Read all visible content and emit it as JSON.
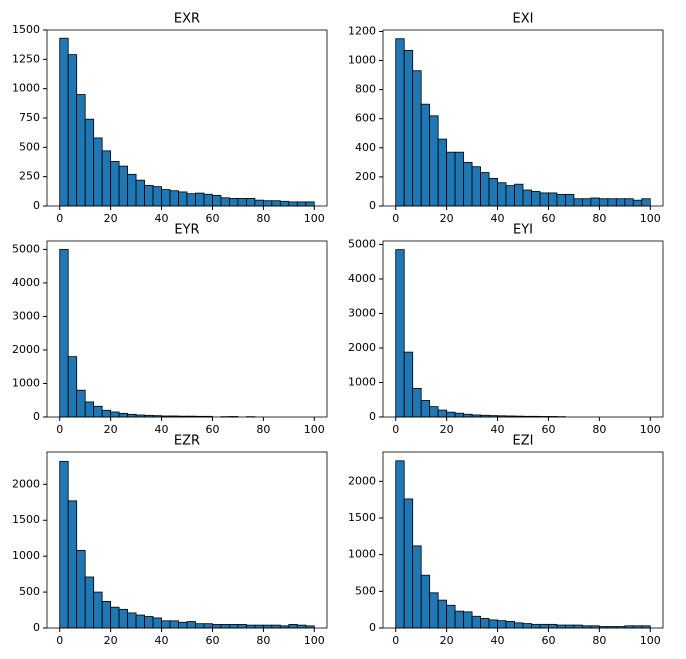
{
  "chart_data": [
    {
      "type": "histogram",
      "title": "EXR",
      "color": "#1f77b4",
      "edgecolor": "#000000",
      "bins": [
        0,
        3.33,
        6.67,
        10,
        13.33,
        16.67,
        20,
        23.33,
        26.67,
        30,
        33.33,
        36.67,
        40,
        43.33,
        46.67,
        50,
        53.33,
        56.67,
        60,
        63.33,
        66.67,
        70,
        73.33,
        76.67,
        80,
        83.33,
        86.67,
        90,
        93.33,
        96.67,
        100
      ],
      "values": [
        1430,
        1290,
        950,
        740,
        580,
        470,
        380,
        340,
        270,
        220,
        175,
        165,
        140,
        130,
        120,
        105,
        110,
        100,
        90,
        70,
        65,
        65,
        65,
        50,
        45,
        45,
        40,
        35,
        35,
        35
      ],
      "xlim": [
        -5,
        105
      ],
      "xticks": [
        0,
        20,
        40,
        60,
        80,
        100
      ],
      "ylim": [
        0,
        1500
      ],
      "yticks": [
        0,
        250,
        500,
        750,
        1000,
        1250,
        1500
      ]
    },
    {
      "type": "histogram",
      "title": "EXI",
      "color": "#1f77b4",
      "edgecolor": "#000000",
      "bins": [
        0,
        3.33,
        6.67,
        10,
        13.33,
        16.67,
        20,
        23.33,
        26.67,
        30,
        33.33,
        36.67,
        40,
        43.33,
        46.67,
        50,
        53.33,
        56.67,
        60,
        63.33,
        66.67,
        70,
        73.33,
        76.67,
        80,
        83.33,
        86.67,
        90,
        93.33,
        96.67,
        100
      ],
      "values": [
        1150,
        1070,
        930,
        700,
        620,
        460,
        370,
        370,
        300,
        270,
        230,
        190,
        160,
        140,
        150,
        110,
        100,
        90,
        90,
        80,
        80,
        50,
        50,
        55,
        50,
        50,
        50,
        50,
        40,
        50
      ],
      "xlim": [
        -5,
        105
      ],
      "xticks": [
        0,
        20,
        40,
        60,
        80,
        100
      ],
      "ylim": [
        0,
        1210
      ],
      "yticks": [
        0,
        200,
        400,
        600,
        800,
        1000,
        1200
      ]
    },
    {
      "type": "histogram",
      "title": "EYR",
      "color": "#1f77b4",
      "edgecolor": "#000000",
      "bins": [
        0,
        3.33,
        6.67,
        10,
        13.33,
        16.67,
        20,
        23.33,
        26.67,
        30,
        33.33,
        36.67,
        40,
        43.33,
        46.67,
        50,
        53.33,
        56.67,
        60,
        63.33,
        66.67,
        70,
        73.33,
        76.67,
        80,
        83.33,
        86.67,
        90,
        93.33,
        96.67,
        100
      ],
      "values": [
        5000,
        1800,
        800,
        450,
        320,
        200,
        150,
        110,
        80,
        60,
        50,
        40,
        30,
        30,
        25,
        25,
        20,
        20,
        0,
        10,
        15,
        0,
        10,
        0,
        0,
        0,
        0,
        0,
        0,
        0
      ],
      "xlim": [
        -5,
        105
      ],
      "xticks": [
        0,
        20,
        40,
        60,
        80,
        100
      ],
      "ylim": [
        0,
        5250
      ],
      "yticks": [
        0,
        1000,
        2000,
        3000,
        4000,
        5000
      ]
    },
    {
      "type": "histogram",
      "title": "EYI",
      "color": "#1f77b4",
      "edgecolor": "#000000",
      "bins": [
        0,
        3.33,
        6.67,
        10,
        13.33,
        16.67,
        20,
        23.33,
        26.67,
        30,
        33.33,
        36.67,
        40,
        43.33,
        46.67,
        50,
        53.33,
        56.67,
        60,
        63.33,
        66.67,
        70,
        73.33,
        76.67,
        80,
        83.33,
        86.67,
        90,
        93.33,
        96.67,
        100
      ],
      "values": [
        4850,
        1880,
        830,
        480,
        300,
        200,
        140,
        110,
        80,
        60,
        50,
        40,
        35,
        30,
        25,
        20,
        20,
        15,
        15,
        10,
        0,
        0,
        0,
        0,
        0,
        0,
        0,
        0,
        0,
        0
      ],
      "xlim": [
        -5,
        105
      ],
      "xticks": [
        0,
        20,
        40,
        60,
        80,
        100
      ],
      "ylim": [
        0,
        5100
      ],
      "yticks": [
        0,
        1000,
        2000,
        3000,
        4000,
        5000
      ]
    },
    {
      "type": "histogram",
      "title": "EZR",
      "color": "#1f77b4",
      "edgecolor": "#000000",
      "bins": [
        0,
        3.33,
        6.67,
        10,
        13.33,
        16.67,
        20,
        23.33,
        26.67,
        30,
        33.33,
        36.67,
        40,
        43.33,
        46.67,
        50,
        53.33,
        56.67,
        60,
        63.33,
        66.67,
        70,
        73.33,
        76.67,
        80,
        83.33,
        86.67,
        90,
        93.33,
        96.67,
        100
      ],
      "values": [
        2320,
        1770,
        1080,
        710,
        500,
        370,
        290,
        260,
        210,
        180,
        160,
        140,
        100,
        100,
        80,
        90,
        60,
        60,
        50,
        50,
        50,
        50,
        40,
        40,
        40,
        40,
        30,
        50,
        40,
        30
      ],
      "xlim": [
        -5,
        105
      ],
      "xticks": [
        0,
        20,
        40,
        60,
        80,
        100
      ],
      "ylim": [
        0,
        2450
      ],
      "yticks": [
        0,
        500,
        1000,
        1500,
        2000
      ]
    },
    {
      "type": "histogram",
      "title": "EZI",
      "color": "#1f77b4",
      "edgecolor": "#000000",
      "bins": [
        0,
        3.33,
        6.67,
        10,
        13.33,
        16.67,
        20,
        23.33,
        26.67,
        30,
        33.33,
        36.67,
        40,
        43.33,
        46.67,
        50,
        53.33,
        56.67,
        60,
        63.33,
        66.67,
        70,
        73.33,
        76.67,
        80,
        83.33,
        86.67,
        90,
        93.33,
        96.67,
        100
      ],
      "values": [
        2280,
        1760,
        1120,
        720,
        480,
        380,
        310,
        230,
        220,
        160,
        130,
        110,
        100,
        90,
        70,
        60,
        50,
        50,
        50,
        40,
        40,
        40,
        30,
        30,
        20,
        20,
        20,
        30,
        30,
        30
      ],
      "xlim": [
        -5,
        105
      ],
      "xticks": [
        0,
        20,
        40,
        60,
        80,
        100
      ],
      "ylim": [
        0,
        2400
      ],
      "yticks": [
        0,
        500,
        1000,
        1500,
        2000
      ]
    }
  ]
}
